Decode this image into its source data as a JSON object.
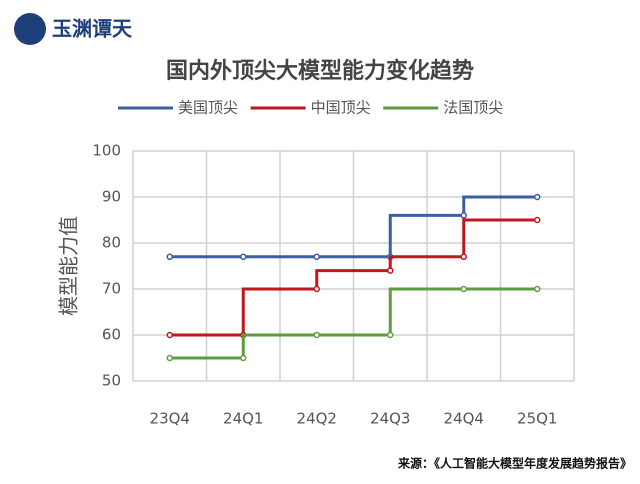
{
  "brand": "玉渊谭天",
  "chart_data": {
    "type": "line",
    "step": true,
    "title": "国内外顶尖大模型能力变化趋势",
    "y_label": "模型能力值",
    "categories": [
      "23Q4",
      "24Q1",
      "24Q2",
      "24Q3",
      "24Q4",
      "25Q1"
    ],
    "series": [
      {
        "name": "美国顶尖",
        "color": "#3d5da3",
        "values": [
          77,
          77,
          77,
          77,
          86,
          90
        ]
      },
      {
        "name": "中国顶尖",
        "color": "#c0161d",
        "values": [
          60,
          60,
          70,
          74,
          77,
          85
        ]
      },
      {
        "name": "法国顶尖",
        "color": "#5c9b3e",
        "values": [
          55,
          55,
          60,
          60,
          70,
          70
        ]
      }
    ],
    "ylim": [
      50,
      100
    ],
    "yticks": [
      50,
      60,
      70,
      80,
      90,
      100
    ],
    "grid": true,
    "legend": "top",
    "source": "来源：《人工智能大模型年度发展趋势报告》"
  }
}
